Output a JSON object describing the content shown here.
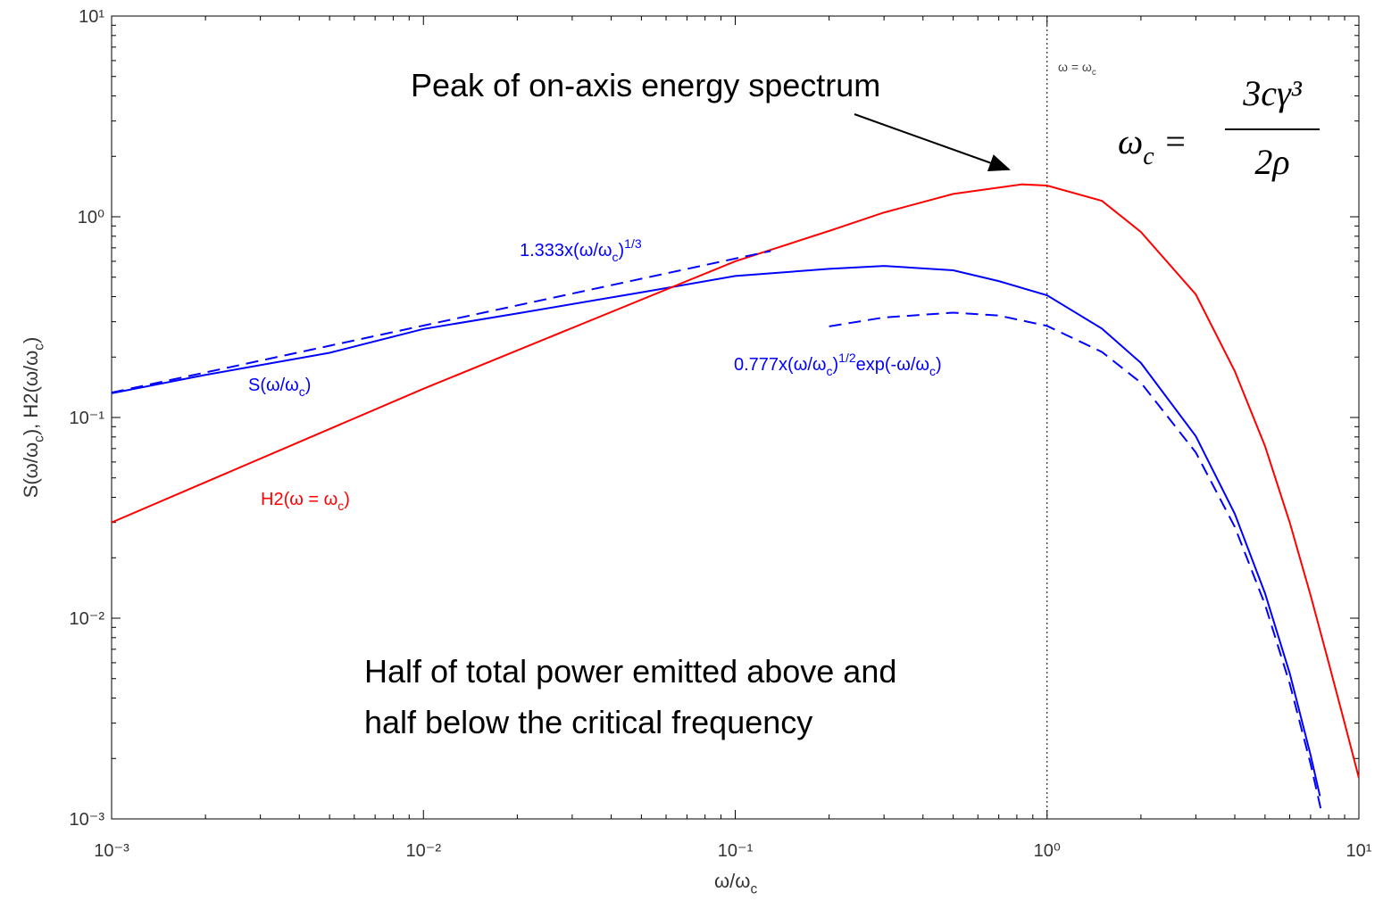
{
  "chart_data": {
    "type": "line",
    "xlabel": {
      "parts": [
        "ω/ω",
        {
          "sub": "c"
        }
      ]
    },
    "ylabel": {
      "parts": [
        "S(ω/ω",
        {
          "sub": "c"
        },
        "), H2(ω/ω",
        {
          "sub": "c"
        },
        ")"
      ]
    },
    "log_x": true,
    "log_y": true,
    "xlim": [
      0.001,
      10
    ],
    "ylim": [
      0.001,
      10
    ],
    "xticks": [
      {
        "value": 0.001,
        "label": "10⁻³"
      },
      {
        "value": 0.01,
        "label": "10⁻²"
      },
      {
        "value": 0.1,
        "label": "10⁻¹"
      },
      {
        "value": 1,
        "label": "10⁰"
      },
      {
        "value": 10,
        "label": "10¹"
      }
    ],
    "yticks": [
      {
        "value": 0.001,
        "label": "10⁻³"
      },
      {
        "value": 0.01,
        "label": "10⁻²"
      },
      {
        "value": 0.1,
        "label": "10⁻¹"
      },
      {
        "value": 1,
        "label": "10⁰"
      },
      {
        "value": 10,
        "label": "10¹"
      }
    ],
    "vline": 1,
    "series": [
      {
        "color": "#0000ff",
        "dash": false,
        "x": [
          0.001,
          0.002,
          0.005,
          0.01,
          0.02,
          0.05,
          0.1,
          0.2,
          0.3,
          0.5,
          0.7,
          1,
          1.5,
          2,
          3,
          4,
          5,
          6,
          7,
          7.5
        ],
        "values": [
          0.132,
          0.163,
          0.21,
          0.276,
          0.33,
          0.42,
          0.507,
          0.55,
          0.569,
          0.541,
          0.478,
          0.406,
          0.277,
          0.187,
          0.0806,
          0.0331,
          0.0133,
          0.00532,
          0.00208,
          0.0013
        ]
      },
      {
        "color": "#ff0000",
        "dash": false,
        "x": [
          0.001,
          0.01,
          0.1,
          0.2,
          0.3,
          0.5,
          0.83,
          1,
          1.5,
          2,
          3,
          4,
          5,
          6,
          7,
          8,
          9,
          10
        ],
        "values": [
          0.03,
          0.139,
          0.6,
          0.85,
          1.05,
          1.3,
          1.45,
          1.43,
          1.2,
          0.84,
          0.41,
          0.17,
          0.072,
          0.03,
          0.013,
          0.006,
          0.003,
          0.0016
        ]
      },
      {
        "color": "#0000ff",
        "dash": true,
        "x": [
          0.001,
          0.01,
          0.1,
          0.13
        ],
        "values": [
          0.133,
          0.287,
          0.619,
          0.675
        ]
      },
      {
        "color": "#0000ff",
        "dash": true,
        "x": [
          0.2,
          0.3,
          0.5,
          0.7,
          1,
          1.5,
          2,
          3,
          4,
          5,
          6,
          7,
          7.6
        ],
        "values": [
          0.2845,
          0.315,
          0.333,
          0.322,
          0.286,
          0.212,
          0.149,
          0.0669,
          0.0285,
          0.0117,
          0.00472,
          0.00188,
          0.00107
        ]
      }
    ],
    "annotations": [
      {
        "parts": [
          "Peak of on-axis energy spectrum"
        ],
        "color": "#000000"
      },
      {
        "parts": [
          "Half of total power emitted above and"
        ],
        "color": "#000000"
      },
      {
        "parts": [
          "half below the critical frequency"
        ],
        "color": "#000000"
      },
      {
        "parts": [
          "1.333x(ω/ω",
          {
            "sub": "c"
          },
          ")",
          {
            "sup": "1/3"
          }
        ],
        "color": "#0000ff"
      },
      {
        "parts": [
          "0.777x(ω/ω",
          {
            "sub": "c"
          },
          ")",
          {
            "sup": "1/2"
          },
          "exp(-ω/ω",
          {
            "sub": "c"
          },
          ")"
        ],
        "color": "#0000ff"
      },
      {
        "parts": [
          "S(ω/ω",
          {
            "sub": "c"
          },
          ")"
        ],
        "color": "#0000ff"
      },
      {
        "parts": [
          "H2(ω = ω",
          {
            "sub": "c"
          },
          ")"
        ],
        "color": "#ff0000"
      },
      {
        "parts": [
          "ω = ω",
          {
            "sub": "c"
          }
        ],
        "color": "#444444"
      }
    ],
    "formula": {
      "lhs": {
        "parts": [
          "ω",
          {
            "sub": "c"
          },
          " ="
        ]
      },
      "numerator": "3cγ³",
      "denominator": "2ρ"
    }
  }
}
